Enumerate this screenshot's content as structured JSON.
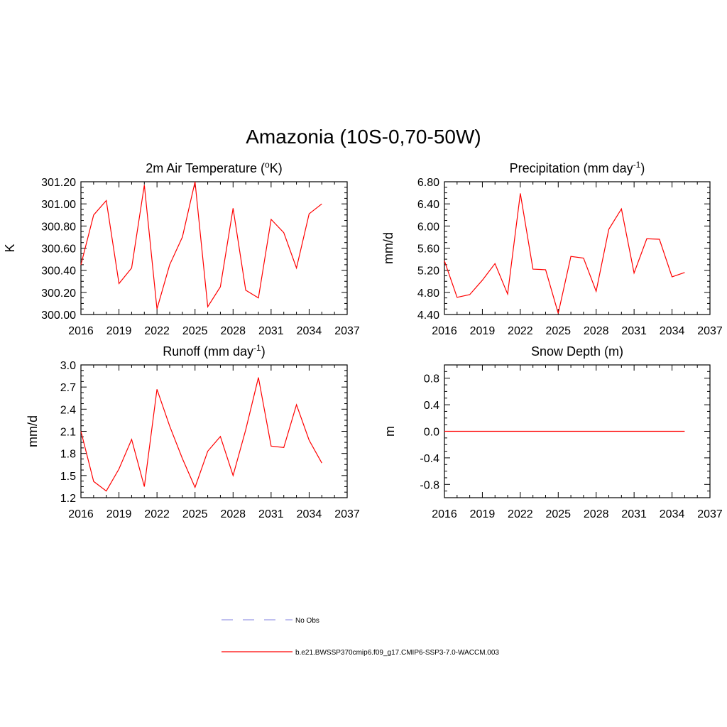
{
  "title": "Amazonia (10S-0,70-50W)",
  "colors": {
    "model": "#ff0000",
    "obs": "#9a9ae8",
    "axis": "#000000"
  },
  "legend": {
    "placement": "bottom-center",
    "entries": [
      {
        "label": "No Obs",
        "style": "dashed",
        "color": "#9a9ae8"
      },
      {
        "label": "b.e21.BWSSP370cmip6.f09_g17.CMIP6-SSP3-7.0-WACCM.003",
        "style": "solid",
        "color": "#ff0000"
      }
    ]
  },
  "chart_data": [
    {
      "id": "tas",
      "type": "line",
      "title": "2m Air Temperature (",
      "title_sup": "o",
      "title_post": "K)",
      "xlabel": "",
      "ylabel": "K",
      "xlim": [
        2016,
        2037
      ],
      "ylim": [
        300.0,
        301.2
      ],
      "xticks": [
        2016,
        2019,
        2022,
        2025,
        2028,
        2031,
        2034,
        2037
      ],
      "xtick_labels": [
        "2016",
        "2019",
        "2022",
        "2025",
        "2028",
        "2031",
        "2034",
        "2037"
      ],
      "yticks": [
        300.0,
        300.2,
        300.4,
        300.6,
        300.8,
        301.0,
        301.2
      ],
      "ytick_labels": [
        "300.00",
        "300.20",
        "300.40",
        "300.60",
        "300.80",
        "301.00",
        "301.20"
      ],
      "series": [
        {
          "name": "b.e21.BWSSP370cmip6.f09_g17.CMIP6-SSP3-7.0-WACCM.003",
          "x": [
            2016,
            2017,
            2018,
            2019,
            2020,
            2021,
            2022,
            2023,
            2024,
            2025,
            2026,
            2027,
            2028,
            2029,
            2030,
            2031,
            2032,
            2033,
            2034,
            2035
          ],
          "values": [
            300.45,
            300.9,
            301.03,
            300.28,
            300.42,
            301.17,
            300.05,
            300.45,
            300.7,
            301.2,
            300.07,
            300.25,
            300.96,
            300.22,
            300.15,
            300.86,
            300.74,
            300.42,
            300.91,
            301.0
          ]
        }
      ]
    },
    {
      "id": "pr",
      "type": "line",
      "title": "Precipitation (mm day",
      "title_sup": "-1",
      "title_post": ")",
      "xlabel": "",
      "ylabel": "mm/d",
      "xlim": [
        2016,
        2037
      ],
      "ylim": [
        4.4,
        6.8
      ],
      "xticks": [
        2016,
        2019,
        2022,
        2025,
        2028,
        2031,
        2034,
        2037
      ],
      "xtick_labels": [
        "2016",
        "2019",
        "2022",
        "2025",
        "2028",
        "2031",
        "2034",
        "2037"
      ],
      "yticks": [
        4.4,
        4.8,
        5.2,
        5.6,
        6.0,
        6.4,
        6.8
      ],
      "ytick_labels": [
        "4.40",
        "4.80",
        "5.20",
        "5.60",
        "6.00",
        "6.40",
        "6.80"
      ],
      "series": [
        {
          "name": "b.e21.BWSSP370cmip6.f09_g17.CMIP6-SSP3-7.0-WACCM.003",
          "x": [
            2016,
            2017,
            2018,
            2019,
            2020,
            2021,
            2022,
            2023,
            2024,
            2025,
            2026,
            2027,
            2028,
            2029,
            2030,
            2031,
            2032,
            2033,
            2034,
            2035
          ],
          "values": [
            5.37,
            4.71,
            4.76,
            5.02,
            5.32,
            4.77,
            6.59,
            5.22,
            5.21,
            4.42,
            5.45,
            5.42,
            4.82,
            5.94,
            6.31,
            5.15,
            5.77,
            5.76,
            5.08,
            5.16
          ]
        }
      ]
    },
    {
      "id": "runoff",
      "type": "line",
      "title": "Runoff (mm day",
      "title_sup": "-1",
      "title_post": ")",
      "xlabel": "",
      "ylabel": "mm/d",
      "xlim": [
        2016,
        2037
      ],
      "ylim": [
        1.2,
        3.0
      ],
      "xticks": [
        2016,
        2019,
        2022,
        2025,
        2028,
        2031,
        2034,
        2037
      ],
      "xtick_labels": [
        "2016",
        "2019",
        "2022",
        "2025",
        "2028",
        "2031",
        "2034",
        "2037"
      ],
      "yticks": [
        1.2,
        1.5,
        1.8,
        2.1,
        2.4,
        2.7,
        3.0
      ],
      "ytick_labels": [
        "1.2",
        "1.5",
        "1.8",
        "2.1",
        "2.4",
        "2.7",
        "3.0"
      ],
      "series": [
        {
          "name": "b.e21.BWSSP370cmip6.f09_g17.CMIP6-SSP3-7.0-WACCM.003",
          "x": [
            2016,
            2017,
            2018,
            2019,
            2020,
            2021,
            2022,
            2023,
            2024,
            2025,
            2026,
            2027,
            2028,
            2029,
            2030,
            2031,
            2032,
            2033,
            2034,
            2035
          ],
          "values": [
            2.1,
            1.42,
            1.29,
            1.59,
            1.99,
            1.35,
            2.67,
            2.17,
            1.73,
            1.34,
            1.83,
            2.03,
            1.5,
            2.12,
            2.83,
            1.9,
            1.88,
            2.46,
            1.98,
            1.67
          ]
        }
      ]
    },
    {
      "id": "snowd",
      "type": "line",
      "title": "Snow Depth (m)",
      "title_sup": "",
      "title_post": "",
      "xlabel": "",
      "ylabel": "m",
      "xlim": [
        2016,
        2037
      ],
      "ylim": [
        -1.0,
        1.0
      ],
      "xticks": [
        2016,
        2019,
        2022,
        2025,
        2028,
        2031,
        2034,
        2037
      ],
      "xtick_labels": [
        "2016",
        "2019",
        "2022",
        "2025",
        "2028",
        "2031",
        "2034",
        "2037"
      ],
      "yticks": [
        -0.8,
        -0.4,
        0.0,
        0.4,
        0.8
      ],
      "ytick_labels": [
        "-0.8",
        "-0.4",
        "0.0",
        "0.4",
        "0.8"
      ],
      "series": [
        {
          "name": "b.e21.BWSSP370cmip6.f09_g17.CMIP6-SSP3-7.0-WACCM.003",
          "x": [
            2016,
            2017,
            2018,
            2019,
            2020,
            2021,
            2022,
            2023,
            2024,
            2025,
            2026,
            2027,
            2028,
            2029,
            2030,
            2031,
            2032,
            2033,
            2034,
            2035
          ],
          "values": [
            0,
            0,
            0,
            0,
            0,
            0,
            0,
            0,
            0,
            0,
            0,
            0,
            0,
            0,
            0,
            0,
            0,
            0,
            0,
            0
          ]
        }
      ]
    }
  ]
}
